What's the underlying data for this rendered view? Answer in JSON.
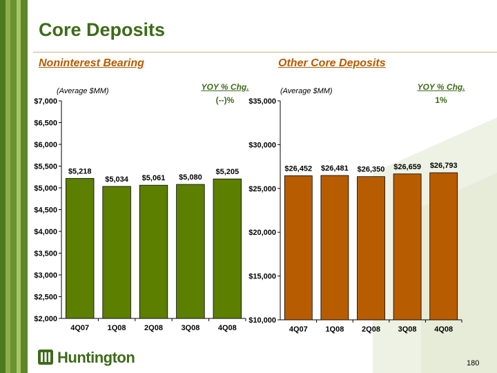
{
  "title": "Core Deposits",
  "page_number": "180",
  "logo_text": "Huntington",
  "colors": {
    "accent_green": "#3d6b19",
    "bar_green": "#5c7f00",
    "bar_orange": "#b85c00",
    "section_orange": "#b55a00"
  },
  "sections": {
    "left": {
      "heading": "Noninterest Bearing",
      "subtitle": "(Average $MM)",
      "yoy_label": "YOY % Chg.",
      "yoy_value": "(--)%"
    },
    "right": {
      "heading": "Other Core Deposits",
      "subtitle": "(Average $MM)",
      "yoy_label": "YOY % Chg.",
      "yoy_value": "1%"
    }
  },
  "chart_data": [
    {
      "type": "bar",
      "categories": [
        "4Q07",
        "1Q08",
        "2Q08",
        "3Q08",
        "4Q08"
      ],
      "values": [
        5218,
        5034,
        5061,
        5080,
        5205
      ],
      "data_labels": [
        "$5,218",
        "$5,034",
        "$5,061",
        "$5,080",
        "$5,205"
      ],
      "ylim": [
        2000,
        7000
      ],
      "yticks": [
        2000,
        2500,
        3000,
        3500,
        4000,
        4500,
        5000,
        5500,
        6000,
        6500,
        7000
      ],
      "ytick_labels": [
        "$2,000",
        "$2,500",
        "$3,000",
        "$3,500",
        "$4,000",
        "$4,500",
        "$5,000",
        "$5,500",
        "$6,000",
        "$6,500",
        "$7,000"
      ],
      "bar_color": "#5c7f00",
      "grid": false
    },
    {
      "type": "bar",
      "categories": [
        "4Q07",
        "1Q08",
        "2Q08",
        "3Q08",
        "4Q08"
      ],
      "values": [
        26452,
        26481,
        26350,
        26659,
        26793
      ],
      "data_labels": [
        "$26,452",
        "$26,481",
        "$26,350",
        "$26,659",
        "$26,793"
      ],
      "ylim": [
        10000,
        35000
      ],
      "yticks": [
        10000,
        15000,
        20000,
        25000,
        30000,
        35000
      ],
      "ytick_labels": [
        "$10,000",
        "$15,000",
        "$20,000",
        "$25,000",
        "$30,000",
        "$35,000"
      ],
      "bar_color": "#b85c00",
      "grid": false
    }
  ]
}
